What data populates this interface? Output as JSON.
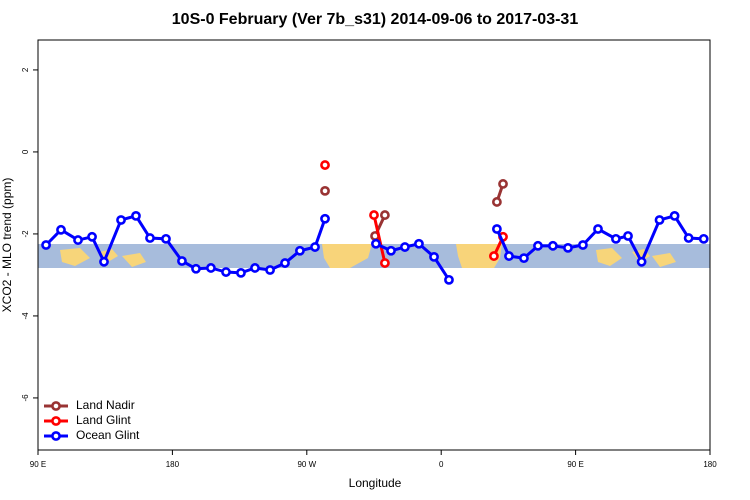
{
  "chart_data": {
    "type": "line",
    "title": "10S-0 February (Ver 7b_s31)   2014-09-06 to 2017-03-31",
    "xlabel": "Longitude",
    "ylabel": "XCO2 - MLO trend (ppm)",
    "xlim": [
      90,
      540
    ],
    "ylim": [
      -7.27,
      2.73
    ],
    "xticks": [
      {
        "value": 90,
        "label": "90 E"
      },
      180,
      {
        "value": 270,
        "label": "90 W"
      },
      0,
      {
        "value": 450,
        "label": "90 E"
      },
      {
        "value": 540,
        "label": "180"
      }
    ],
    "yticks": [
      2,
      0,
      -2,
      -4,
      -6
    ],
    "legend": "bottom-left",
    "series": [
      {
        "name": "Land Nadir",
        "color": "#993333",
        "x": [
          282.2,
          300,
          315.7,
          322.3,
          360,
          397.3,
          401.4
        ],
        "values": [
          -0.95,
          null,
          -2.05,
          -1.54,
          null,
          -1.22,
          -0.78
        ]
      },
      {
        "name": "Land Glint",
        "color": "#ff0000",
        "x": [
          282.2,
          300,
          315.0,
          322.3,
          360,
          395.3,
          401.4
        ],
        "values": [
          -0.32,
          null,
          -1.54,
          -2.71,
          null,
          -2.54,
          -2.07
        ]
      },
      {
        "name": "Ocean Glint",
        "color": "#0000ff",
        "x": [
          95.4,
          105.4,
          116.8,
          126.2,
          134.2,
          145.6,
          155.6,
          165,
          175.7,
          186.4,
          195.8,
          205.8,
          215.9,
          225.9,
          235.3,
          245.4,
          255.4,
          265.4,
          275.5,
          282.2,
          300,
          316.3,
          326.4,
          335.7,
          345.1,
          355.2,
          365.2,
          380,
          397.3,
          405.4,
          415.4,
          424.8,
          434.8,
          444.9,
          454.9,
          465,
          477,
          485.1,
          494.2,
          506.2,
          516.3,
          525.7,
          535.8
        ],
        "values": [
          -2.27,
          -1.9,
          -2.15,
          -2.07,
          -2.68,
          -1.66,
          -1.56,
          -2.1,
          -2.12,
          -2.66,
          -2.85,
          -2.83,
          -2.93,
          -2.95,
          -2.83,
          -2.88,
          -2.71,
          -2.41,
          -2.32,
          -1.63,
          null,
          -2.24,
          -2.41,
          -2.32,
          -2.24,
          -2.56,
          -3.12,
          null,
          -1.88,
          -2.54,
          -2.59,
          -2.29,
          -2.29,
          -2.34,
          -2.27,
          -1.88,
          -2.12,
          -2.05,
          -2.68,
          -1.66,
          -1.56,
          -2.1,
          -2.12
        ]
      }
    ]
  }
}
